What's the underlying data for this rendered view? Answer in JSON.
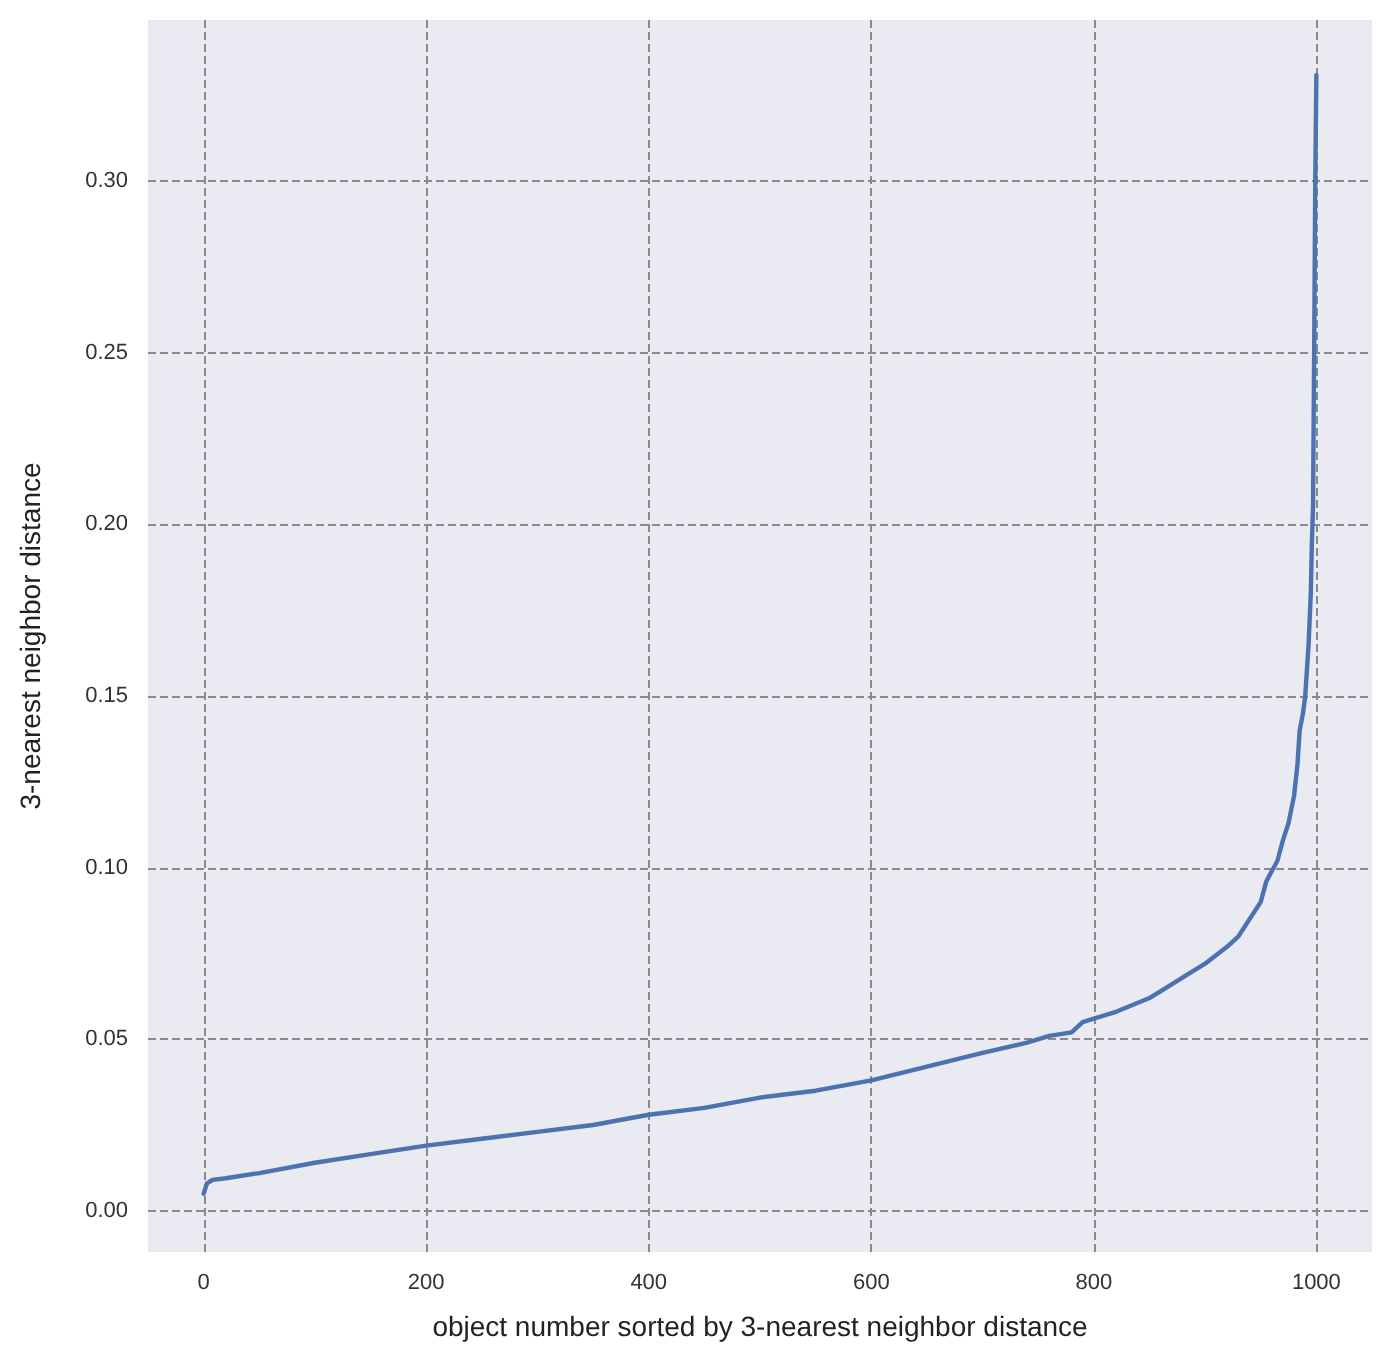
{
  "chart_data": {
    "type": "line",
    "xlabel": "object number sorted by 3-nearest neighbor distance",
    "ylabel": "3-nearest neighbor distance",
    "x": [
      0,
      3,
      8,
      20,
      50,
      100,
      150,
      200,
      250,
      300,
      350,
      400,
      450,
      500,
      550,
      600,
      650,
      700,
      740,
      760,
      780,
      790,
      800,
      820,
      850,
      870,
      880,
      900,
      920,
      930,
      940,
      950,
      955,
      960,
      965,
      970,
      975,
      980,
      983,
      985,
      988,
      990,
      992,
      993,
      995,
      996,
      997,
      998,
      999,
      1000
    ],
    "series": [
      {
        "color": "#4c72b0",
        "values": [
          0.005,
          0.008,
          0.009,
          0.0095,
          0.011,
          0.014,
          0.0165,
          0.019,
          0.021,
          0.023,
          0.025,
          0.028,
          0.03,
          0.033,
          0.035,
          0.038,
          0.042,
          0.046,
          0.049,
          0.051,
          0.052,
          0.055,
          0.056,
          0.058,
          0.062,
          0.066,
          0.068,
          0.072,
          0.077,
          0.08,
          0.085,
          0.09,
          0.096,
          0.099,
          0.102,
          0.108,
          0.113,
          0.121,
          0.13,
          0.14,
          0.145,
          0.15,
          0.16,
          0.165,
          0.18,
          0.195,
          0.205,
          0.25,
          0.3,
          0.331
        ]
      }
    ],
    "xlim": [
      -50,
      1050
    ],
    "xticks": [
      0,
      200,
      400,
      600,
      800,
      1000
    ],
    "ylim": [
      -0.012,
      0.347
    ],
    "yticks": [
      {
        "value": 0,
        "label": "0.00"
      },
      0.05,
      {
        "value": 0.1,
        "label": "0.10"
      },
      0.15,
      {
        "value": 0.2,
        "label": "0.20"
      },
      0.25,
      {
        "value": 0.3,
        "label": "0.30"
      }
    ],
    "grid": true,
    "marker": "none",
    "line_style": "solid"
  }
}
